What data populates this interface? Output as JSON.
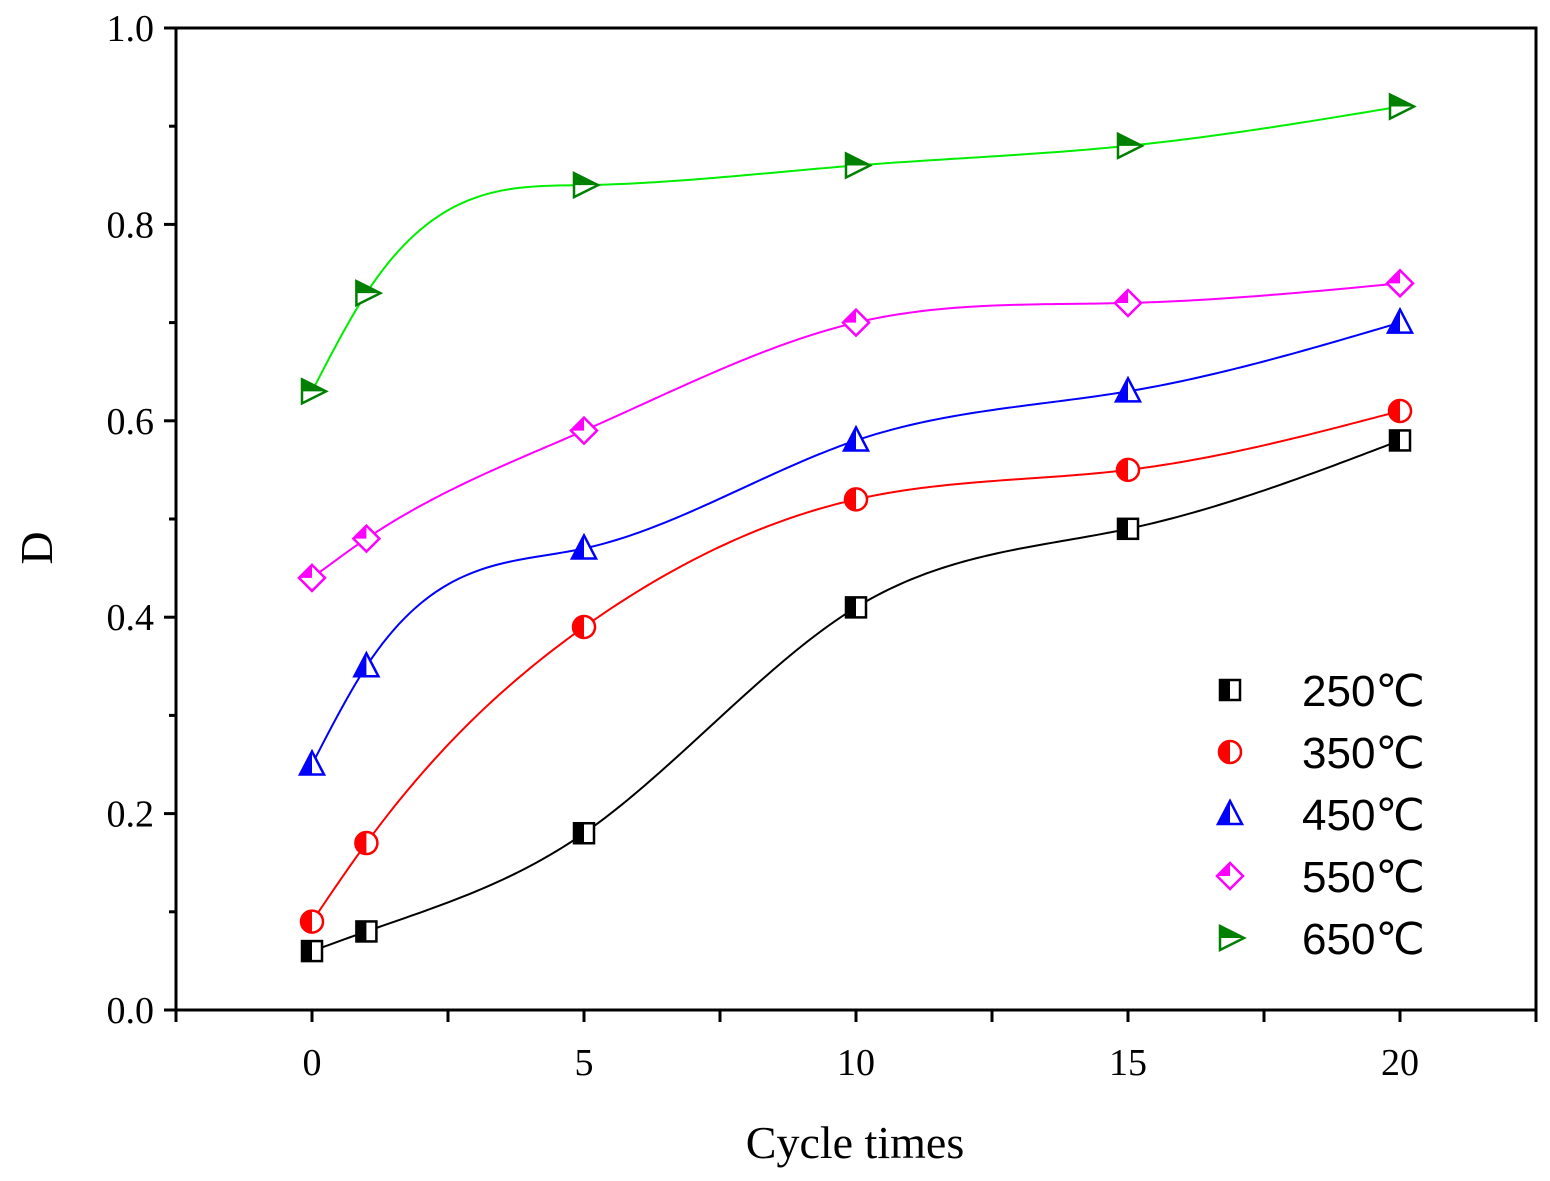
{
  "chart_data": {
    "type": "line",
    "title": "",
    "xlabel": "Cycle times",
    "ylabel": "D",
    "xlim": [
      -2.5,
      22.5
    ],
    "ylim": [
      0,
      1.0
    ],
    "x_ticks": [
      "0",
      "5",
      "10",
      "15",
      "20"
    ],
    "y_ticks": [
      "0.0",
      "0.2",
      "0.4",
      "0.6",
      "0.8",
      "1.0"
    ],
    "grid": false,
    "legend_position": "bottom-right",
    "x": [
      0,
      1,
      5,
      10,
      15,
      20
    ],
    "series": [
      {
        "name": "250℃",
        "color": "#000000",
        "marker": "square",
        "values": [
          0.06,
          0.08,
          0.18,
          0.41,
          0.49,
          0.58
        ]
      },
      {
        "name": "350℃",
        "color": "#ff0000",
        "marker": "circle",
        "values": [
          0.09,
          0.17,
          0.39,
          0.52,
          0.55,
          0.61
        ]
      },
      {
        "name": "450℃",
        "color": "#0000ff",
        "marker": "triangle-up",
        "values": [
          0.25,
          0.35,
          0.47,
          0.58,
          0.63,
          0.7
        ]
      },
      {
        "name": "550℃",
        "color": "#ff00ff",
        "marker": "diamond",
        "values": [
          0.44,
          0.48,
          0.59,
          0.7,
          0.72,
          0.74
        ]
      },
      {
        "name": "650℃",
        "color": "#008000",
        "line_color": "#00ee00",
        "marker": "triangle-right",
        "values": [
          0.63,
          0.73,
          0.84,
          0.86,
          0.88,
          0.92
        ]
      }
    ]
  }
}
